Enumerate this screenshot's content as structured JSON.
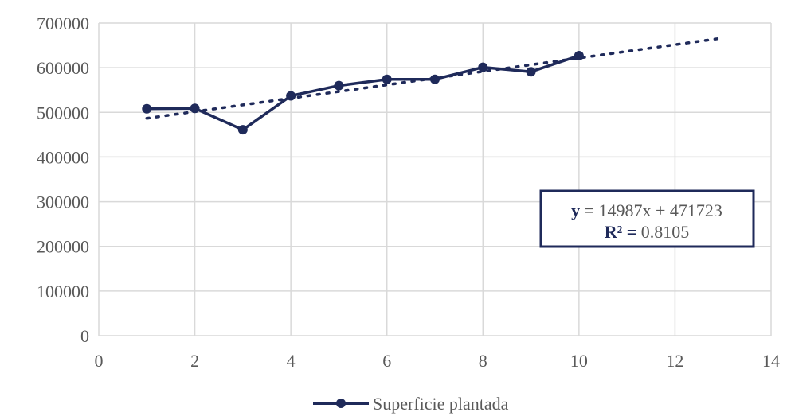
{
  "chart_data": {
    "type": "scatter",
    "title": "",
    "xlabel": "",
    "ylabel": "",
    "xlim": [
      0,
      14
    ],
    "ylim": [
      0,
      700000
    ],
    "x_ticks": [
      0,
      2,
      4,
      6,
      8,
      10,
      12,
      14
    ],
    "y_ticks": [
      0,
      100000,
      200000,
      300000,
      400000,
      500000,
      600000,
      700000
    ],
    "grid": true,
    "legend_position": "bottom",
    "series": [
      {
        "name": "Superficie plantada",
        "color": "#1f2a5a",
        "marker": "circle",
        "x": [
          1,
          2,
          3,
          4,
          5,
          6,
          7,
          8,
          9,
          10
        ],
        "y": [
          508000,
          509000,
          461000,
          537000,
          560000,
          574000,
          574000,
          601000,
          591000,
          627000
        ]
      }
    ],
    "trendline": {
      "type": "linear",
      "style": "dotted",
      "color": "#1f2a5a",
      "slope": 14987,
      "intercept": 471723,
      "x_range": [
        1,
        13
      ],
      "equation_prefix": "y",
      "equation_rest": " = 14987x + 471723",
      "r2_prefix": "R² =",
      "r2_value": " 0.8105"
    }
  }
}
